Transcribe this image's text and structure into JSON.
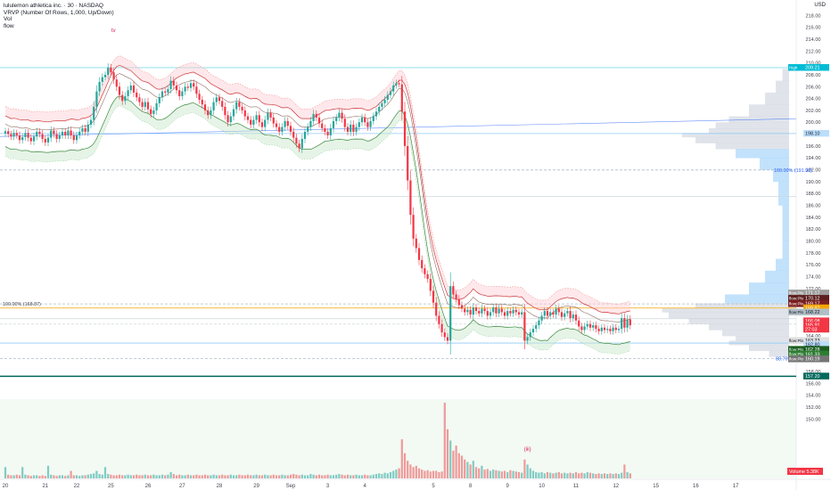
{
  "legend": {
    "title": "lululemon athletica inc. · 30 · NASDAQ",
    "line2": "VRVP (Number Of Rows, 1,000, Up/Down)",
    "line3": "Vol",
    "line4": "flow"
  },
  "tv_mark": "tv",
  "currency": "USD",
  "colors": {
    "up": "#26a69a",
    "down": "#f23645",
    "orange": "#f7a600",
    "blue": "#2962ff",
    "teal_line": "#00695c",
    "band_red": "#ef9a9a",
    "band_green": "#a5d6a7",
    "vp_blue": "#90caf9",
    "vp_grey": "#c7cdd8"
  },
  "chart_data": {
    "type": "candlestick",
    "ylim": [
      149,
      220
    ],
    "y_ticks": [
      "218.00",
      "216.00",
      "214.00",
      "212.00",
      "210.00",
      "208.00",
      "206.00",
      "204.00",
      "202.00",
      "200.00",
      "198.00",
      "196.00",
      "194.00",
      "192.00",
      "190.00",
      "188.00",
      "186.00",
      "184.00",
      "182.00",
      "180.00",
      "178.00",
      "176.00",
      "174.00",
      "172.00",
      "170.00",
      "168.00",
      "166.00",
      "164.00",
      "162.00",
      "160.00",
      "158.00",
      "156.00",
      "154.00",
      "152.00",
      "150.00"
    ],
    "x_ticks": [
      {
        "label": "20",
        "i": 0
      },
      {
        "label": "21",
        "i": 14
      },
      {
        "label": "22",
        "i": 25
      },
      {
        "label": "25",
        "i": 37
      },
      {
        "label": "26",
        "i": 50
      },
      {
        "label": "27",
        "i": 62
      },
      {
        "label": "28",
        "i": 75
      },
      {
        "label": "29",
        "i": 88
      },
      {
        "label": "Sep",
        "i": 100
      },
      {
        "label": "3",
        "i": 113
      },
      {
        "label": "4",
        "i": 126
      },
      {
        "label": "5",
        "i": 150
      },
      {
        "label": "8",
        "i": 163
      },
      {
        "label": "9",
        "i": 176
      },
      {
        "label": "10",
        "i": 188
      },
      {
        "label": "11",
        "i": 200
      },
      {
        "label": "12",
        "i": 214
      },
      {
        "label": "15",
        "i": 228
      },
      {
        "label": "16",
        "i": 242
      },
      {
        "label": "17",
        "i": 256
      }
    ],
    "closes": [
      198.5,
      198.0,
      197.6,
      198.2,
      197.8,
      197.0,
      197.5,
      198.2,
      197.4,
      196.8,
      197.6,
      198.4,
      198.0,
      197.2,
      196.6,
      197.4,
      198.6,
      198.0,
      197.2,
      197.8,
      198.4,
      197.8,
      198.6,
      197.8,
      197.0,
      197.8,
      198.4,
      199.0,
      198.4,
      199.6,
      200.4,
      202.6,
      205.2,
      206.8,
      207.6,
      208.0,
      209.2,
      208.4,
      207.2,
      206.0,
      204.6,
      203.6,
      204.4,
      205.4,
      206.2,
      205.0,
      204.2,
      203.4,
      202.6,
      203.4,
      202.2,
      201.4,
      202.0,
      203.2,
      204.2,
      205.2,
      205.0,
      205.6,
      207.0,
      206.2,
      205.4,
      204.4,
      205.2,
      206.0,
      205.8,
      206.6,
      206.0,
      204.8,
      203.8,
      203.0,
      202.0,
      201.2,
      202.0,
      203.4,
      204.2,
      203.6,
      202.6,
      201.2,
      200.0,
      201.0,
      202.2,
      203.4,
      202.6,
      202.0,
      201.0,
      200.4,
      199.6,
      200.4,
      201.2,
      200.0,
      199.2,
      200.4,
      201.6,
      200.8,
      199.8,
      199.2,
      198.4,
      199.2,
      200.2,
      199.4,
      198.4,
      197.4,
      196.4,
      195.6,
      197.2,
      198.4,
      199.2,
      200.2,
      201.4,
      200.8,
      199.8,
      199.0,
      198.4,
      197.8,
      199.0,
      200.2,
      200.8,
      201.6,
      200.6,
      199.2,
      198.4,
      199.6,
      198.4,
      199.2,
      200.0,
      200.8,
      200.0,
      199.2,
      200.2,
      201.0,
      201.8,
      202.6,
      203.2,
      203.8,
      204.6,
      205.2,
      206.2,
      206.6,
      206.4,
      201.8,
      196.0,
      190.2,
      184.4,
      180.4,
      178.8,
      176.8,
      175.4,
      174.4,
      173.6,
      171.6,
      169.6,
      167.4,
      166.0,
      164.6,
      163.8,
      163.2,
      172.4,
      171.0,
      170.2,
      169.2,
      168.6,
      168.0,
      168.4,
      167.6,
      168.8,
      168.2,
      167.8,
      168.6,
      168.2,
      167.4,
      168.0,
      168.8,
      167.8,
      168.6,
      168.0,
      167.4,
      168.2,
      167.8,
      168.4,
      168.0,
      167.6,
      168.0,
      163.2,
      163.8,
      164.6,
      165.2,
      165.8,
      166.6,
      167.4,
      168.2,
      167.4,
      168.0,
      167.6,
      168.6,
      168.0,
      167.2,
      167.8,
      168.2,
      167.0,
      167.6,
      166.6,
      165.6,
      165.0,
      165.6,
      166.0,
      165.4,
      165.8,
      165.2,
      164.8,
      165.4,
      165.0,
      165.2,
      164.8,
      165.4,
      165.0,
      165.2,
      167.0,
      165.4,
      166.8,
      165.8
    ],
    "volumes": [
      0.18,
      0.06,
      0.05,
      0.05,
      0.06,
      0.05,
      0.18,
      0.06,
      0.05,
      0.04,
      0.05,
      0.05,
      0.04,
      0.05,
      0.04,
      0.2,
      0.06,
      0.05,
      0.04,
      0.05,
      0.05,
      0.04,
      0.05,
      0.12,
      0.05,
      0.05,
      0.04,
      0.05,
      0.05,
      0.06,
      0.07,
      0.08,
      0.12,
      0.07,
      0.06,
      0.18,
      0.07,
      0.06,
      0.05,
      0.05,
      0.06,
      0.05,
      0.05,
      0.06,
      0.05,
      0.05,
      0.06,
      0.05,
      0.05,
      0.06,
      0.05,
      0.05,
      0.06,
      0.05,
      0.05,
      0.06,
      0.05,
      0.06,
      0.1,
      0.07,
      0.05,
      0.06,
      0.05,
      0.05,
      0.06,
      0.05,
      0.05,
      0.06,
      0.05,
      0.05,
      0.06,
      0.05,
      0.05,
      0.06,
      0.05,
      0.05,
      0.06,
      0.05,
      0.05,
      0.06,
      0.05,
      0.05,
      0.06,
      0.05,
      0.05,
      0.06,
      0.05,
      0.05,
      0.06,
      0.05,
      0.05,
      0.06,
      0.05,
      0.05,
      0.06,
      0.05,
      0.05,
      0.06,
      0.05,
      0.05,
      0.06,
      0.07,
      0.06,
      0.05,
      0.06,
      0.05,
      0.05,
      0.07,
      0.06,
      0.05,
      0.06,
      0.05,
      0.05,
      0.06,
      0.05,
      0.05,
      0.06,
      0.07,
      0.06,
      0.05,
      0.06,
      0.05,
      0.05,
      0.06,
      0.05,
      0.05,
      0.06,
      0.05,
      0.05,
      0.06,
      0.07,
      0.08,
      0.07,
      0.09,
      0.08,
      0.1,
      0.12,
      0.14,
      0.16,
      0.62,
      0.4,
      0.28,
      0.22,
      0.18,
      0.2,
      0.16,
      0.14,
      0.12,
      0.13,
      0.11,
      0.12,
      0.12,
      0.1,
      0.11,
      1.2,
      0.78,
      0.6,
      0.44,
      0.52,
      0.4,
      0.36,
      0.3,
      0.26,
      0.22,
      0.28,
      0.18,
      0.16,
      0.2,
      0.14,
      0.15,
      0.12,
      0.14,
      0.13,
      0.12,
      0.11,
      0.12,
      0.1,
      0.13,
      0.12,
      0.11,
      0.1,
      0.09,
      0.3,
      0.22,
      0.16,
      0.12,
      0.1,
      0.09,
      0.1,
      0.08,
      0.1,
      0.09,
      0.08,
      0.09,
      0.1,
      0.08,
      0.09,
      0.08,
      0.09,
      0.08,
      0.1,
      0.08,
      0.09,
      0.08,
      0.1,
      0.09,
      0.08,
      0.07,
      0.08,
      0.07,
      0.08,
      0.07,
      0.08,
      0.07,
      0.08,
      0.07,
      0.09,
      0.22,
      0.1,
      0.08
    ],
    "volume_label": "Volume",
    "volume_value": "5.38K",
    "annotations": {
      "fib_top": "100.00% (191.96)",
      "fib_mid": "100.00% (168.87)",
      "fib_low": "88.70%",
      "wave": "(iii)"
    },
    "h_lines": [
      {
        "price": 209.2,
        "color": "#80deea",
        "dash": false
      },
      {
        "price": 198.1,
        "color": "#90caf9",
        "dash": false
      },
      {
        "price": 191.96,
        "color": "#b0bec5",
        "dash": true
      },
      {
        "price": 187.5,
        "color": "#cfd8dc",
        "dash": false
      },
      {
        "price": 168.7,
        "color": "#f7a600",
        "dash": false
      },
      {
        "price": 169.4,
        "color": "#b0bec5",
        "dash": true
      },
      {
        "price": 166.9,
        "color": "#cfd8dc",
        "dash": false
      },
      {
        "price": 166.0,
        "color": "#cfd8dc",
        "dash": true
      },
      {
        "price": 162.8,
        "color": "#90caf9",
        "dash": false
      },
      {
        "price": 160.2,
        "color": "#b0bec5",
        "dash": true
      },
      {
        "price": 157.2,
        "color": "#00695c",
        "dash": false
      }
    ],
    "price_tags": [
      {
        "text": "209.21",
        "label": "High",
        "price": 209.2,
        "bg": "#00bcd4",
        "fg": "#ffffff"
      },
      {
        "text": "198.10",
        "label": "",
        "price": 198.1,
        "bg": "#bbdefb",
        "fg": "#131722"
      },
      {
        "text": "171.17",
        "label": "flow:Plot",
        "price": 171.2,
        "bg": "#9e9e9e",
        "fg": "#ffffff"
      },
      {
        "text": "170.12",
        "label": "flow:Plot",
        "price": 170.3,
        "bg": "#5d1f1f",
        "fg": "#ffffff"
      },
      {
        "text": "169.17",
        "label": "flow:Plot",
        "price": 169.4,
        "bg": "#7b1f1f",
        "fg": "#ffffff"
      },
      {
        "text": "168.87",
        "label": "",
        "price": 168.7,
        "bg": "#f7a600",
        "fg": "#ffffff"
      },
      {
        "text": "168.22",
        "label": "flow:Plot",
        "price": 168.0,
        "bg": "#b0bec5",
        "fg": "#131722"
      },
      {
        "text": "166.08",
        "label": "",
        "price": 166.5,
        "bg": "#f23645",
        "fg": "#ffffff"
      },
      {
        "text": "165.91",
        "label": "",
        "price": 165.8,
        "bg": "#f23645",
        "fg": "#ffffff"
      },
      {
        "text": "27:03",
        "label": "",
        "price": 165.1,
        "bg": "#f23645",
        "fg": "#ffffff"
      },
      {
        "text": "163.23",
        "label": "flow:Plot",
        "price": 163.2,
        "bg": "#e0e0e0",
        "fg": "#131722"
      },
      {
        "text": "162.80",
        "label": "",
        "price": 162.5,
        "bg": "#bbdefb",
        "fg": "#131722"
      },
      {
        "text": "162.28",
        "label": "flow:Plot",
        "price": 161.7,
        "bg": "#1b5e20",
        "fg": "#ffffff"
      },
      {
        "text": "161.33",
        "label": "flow:Plot",
        "price": 160.9,
        "bg": "#2e7d32",
        "fg": "#ffffff"
      },
      {
        "text": "160.19",
        "label": "flow:Plot",
        "price": 160.1,
        "bg": "#757575",
        "fg": "#ffffff"
      },
      {
        "text": "157.20",
        "label": "",
        "price": 157.2,
        "bg": "#00695c",
        "fg": "#ffffff"
      }
    ]
  }
}
